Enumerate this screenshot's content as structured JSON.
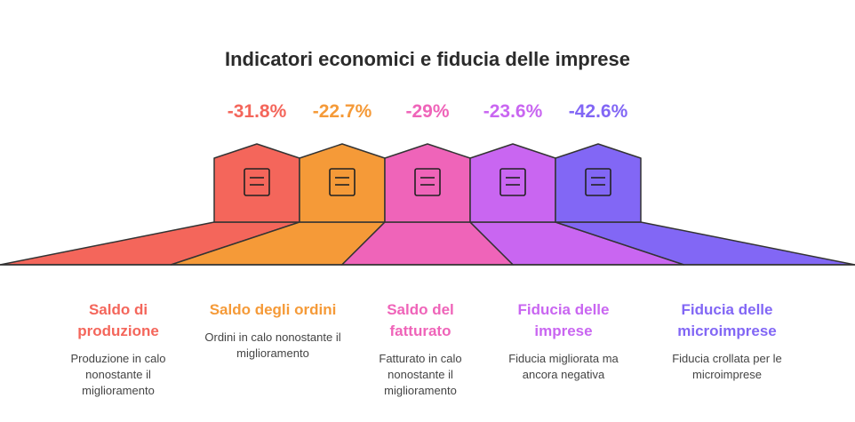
{
  "title": "Indicatori economici e fiducia delle imprese",
  "items": [
    {
      "value": "-31.8%",
      "label": "Saldo di produzione",
      "description": "Produzione in calo nonostante il miglioramento",
      "color": "#f4665b"
    },
    {
      "value": "-22.7%",
      "label": "Saldo degli ordini",
      "description": "Ordini in calo nonostante il miglioramento",
      "color": "#f59a38"
    },
    {
      "value": "-29%",
      "label": "Saldo del fatturato",
      "description": "Fatturato in calo nonostante il miglioramento",
      "color": "#ef64b9"
    },
    {
      "value": "-23.6%",
      "label": "Fiducia delle imprese",
      "description": "Fiducia migliorata ma ancora negativa",
      "color": "#c966f1"
    },
    {
      "value": "-42.6%",
      "label": "Fiducia delle microimprese",
      "description": "Fiducia crollata per le microimprese",
      "color": "#8267f5"
    }
  ]
}
